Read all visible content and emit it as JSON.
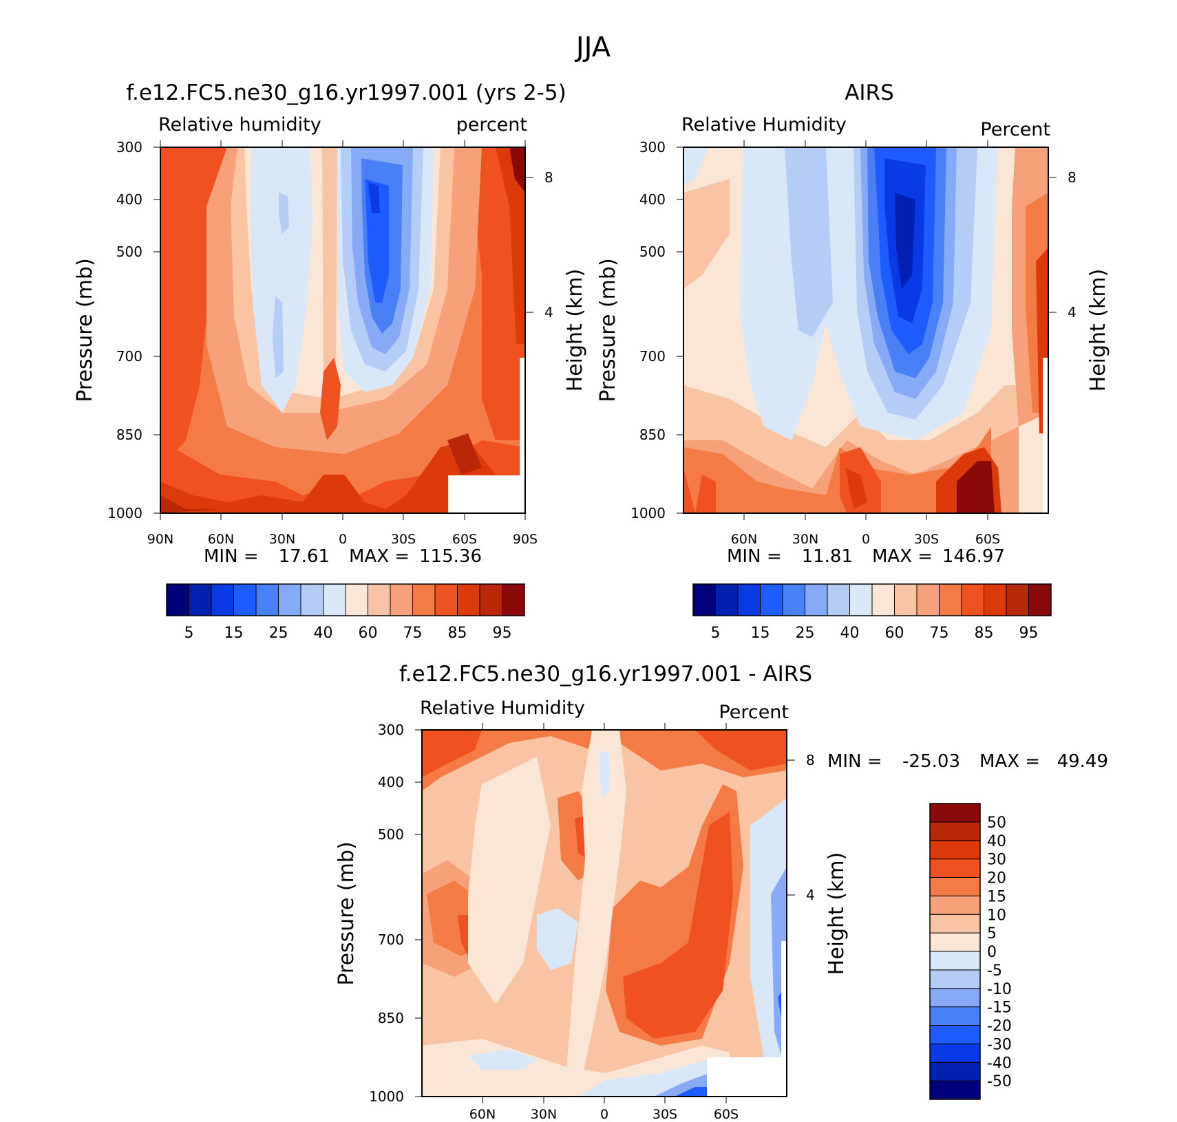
{
  "figure_title": "JJA",
  "colors": {
    "rh_levels": [
      "#00007a",
      "#0020b0",
      "#0a3ae6",
      "#1f5cff",
      "#4a80f5",
      "#86aaf5",
      "#b4cdf7",
      "#d8e8f8",
      "#fbe6d6",
      "#f9c4a4",
      "#f6a17a",
      "#f47a46",
      "#ef5220",
      "#dc3a0a",
      "#b82808",
      "#8a0a0a"
    ],
    "diff_levels": [
      "#00007a",
      "#0020b0",
      "#0a3ae6",
      "#1f5cff",
      "#4a80f5",
      "#86aaf5",
      "#b4cdf7",
      "#d8e8f8",
      "#fbe6d6",
      "#f9c4a4",
      "#f6a17a",
      "#f47a46",
      "#ef5220",
      "#dc3a0a",
      "#b82808",
      "#8a0a0a"
    ]
  },
  "chart_data": [
    {
      "type": "heatmap",
      "title": "f.e12.FC5.ne30_g16.yr1997.001 (yrs 2-5)",
      "left_subtitle": "Relative humidity",
      "right_subtitle": "percent",
      "ylabel": "Pressure (mb)",
      "ylabel_right": "Height (km)",
      "ylim": [
        1000,
        300
      ],
      "yticks": [
        "300",
        "400",
        "500",
        "700",
        "850",
        "1000"
      ],
      "yticks_right": [
        "8",
        "4"
      ],
      "xticks": [
        "90N",
        "60N",
        "30N",
        "0",
        "30S",
        "60S",
        "90S"
      ],
      "min_label": "MIN =",
      "min_value": "17.61",
      "max_label": "MAX =",
      "max_value": "115.36",
      "colorbar_labels": [
        "5",
        "15",
        "25",
        "40",
        "60",
        "75",
        "85",
        "95"
      ]
    },
    {
      "type": "heatmap",
      "title": "AIRS",
      "left_subtitle": "Relative Humidity",
      "right_subtitle": "Percent",
      "ylabel": "Pressure (mb)",
      "ylabel_right": "Height (km)",
      "ylim": [
        1000,
        300
      ],
      "yticks": [
        "300",
        "400",
        "500",
        "700",
        "850",
        "1000"
      ],
      "yticks_right": [
        "8",
        "4"
      ],
      "xticks": [
        "60N",
        "30N",
        "0",
        "30S",
        "60S"
      ],
      "min_label": "MIN =",
      "min_value": "11.81",
      "max_label": "MAX =",
      "max_value": "146.97",
      "colorbar_labels": [
        "5",
        "15",
        "25",
        "40",
        "60",
        "75",
        "85",
        "95"
      ]
    },
    {
      "type": "heatmap",
      "title": "f.e12.FC5.ne30_g16.yr1997.001 - AIRS",
      "left_subtitle": "Relative Humidity",
      "right_subtitle": "Percent",
      "ylabel": "Pressure (mb)",
      "ylabel_right": "Height (km)",
      "ylim": [
        1000,
        300
      ],
      "yticks": [
        "300",
        "400",
        "500",
        "700",
        "850",
        "1000"
      ],
      "yticks_right": [
        "8",
        "4"
      ],
      "xticks": [
        "60N",
        "30N",
        "0",
        "30S",
        "60S"
      ],
      "min_label": "MIN =",
      "min_value": "-25.03",
      "max_label": "MAX =",
      "max_value": "49.49",
      "colorbar_labels": [
        "50",
        "40",
        "30",
        "20",
        "15",
        "10",
        "5",
        "0",
        "-5",
        "-10",
        "-15",
        "-20",
        "-30",
        "-40",
        "-50"
      ]
    }
  ]
}
